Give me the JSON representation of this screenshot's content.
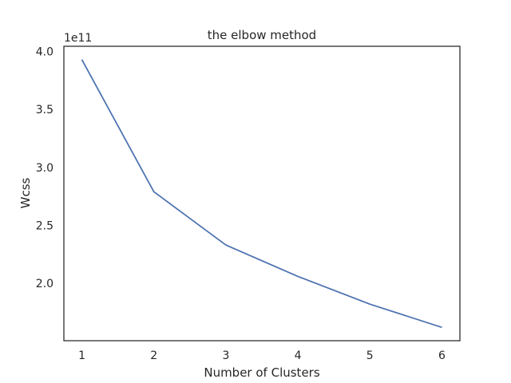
{
  "chart_data": {
    "type": "line",
    "title": "the elbow method",
    "xlabel": "Number of Clusters",
    "ylabel": "Wcss",
    "y_offset_label": "1e11",
    "x": [
      1,
      2,
      3,
      4,
      5,
      6
    ],
    "series": [
      {
        "values": [
          393000000000.0,
          279000000000.0,
          233000000000.0,
          206000000000.0,
          182000000000.0,
          162000000000.0
        ],
        "color": "#4c72b0"
      }
    ],
    "x_ticks": [
      1,
      2,
      3,
      4,
      5,
      6
    ],
    "x_tick_labels": [
      "1",
      "2",
      "3",
      "4",
      "5",
      "6"
    ],
    "y_ticks": [
      200000000000.0,
      250000000000.0,
      300000000000.0,
      350000000000.0,
      400000000000.0
    ],
    "y_tick_labels": [
      "2.0",
      "2.5",
      "3.0",
      "3.5",
      "4.0"
    ],
    "xlim": [
      0.75,
      6.25
    ],
    "ylim": [
      150500000000.0,
      404500000000.0
    ],
    "grid": false,
    "legend": false
  }
}
